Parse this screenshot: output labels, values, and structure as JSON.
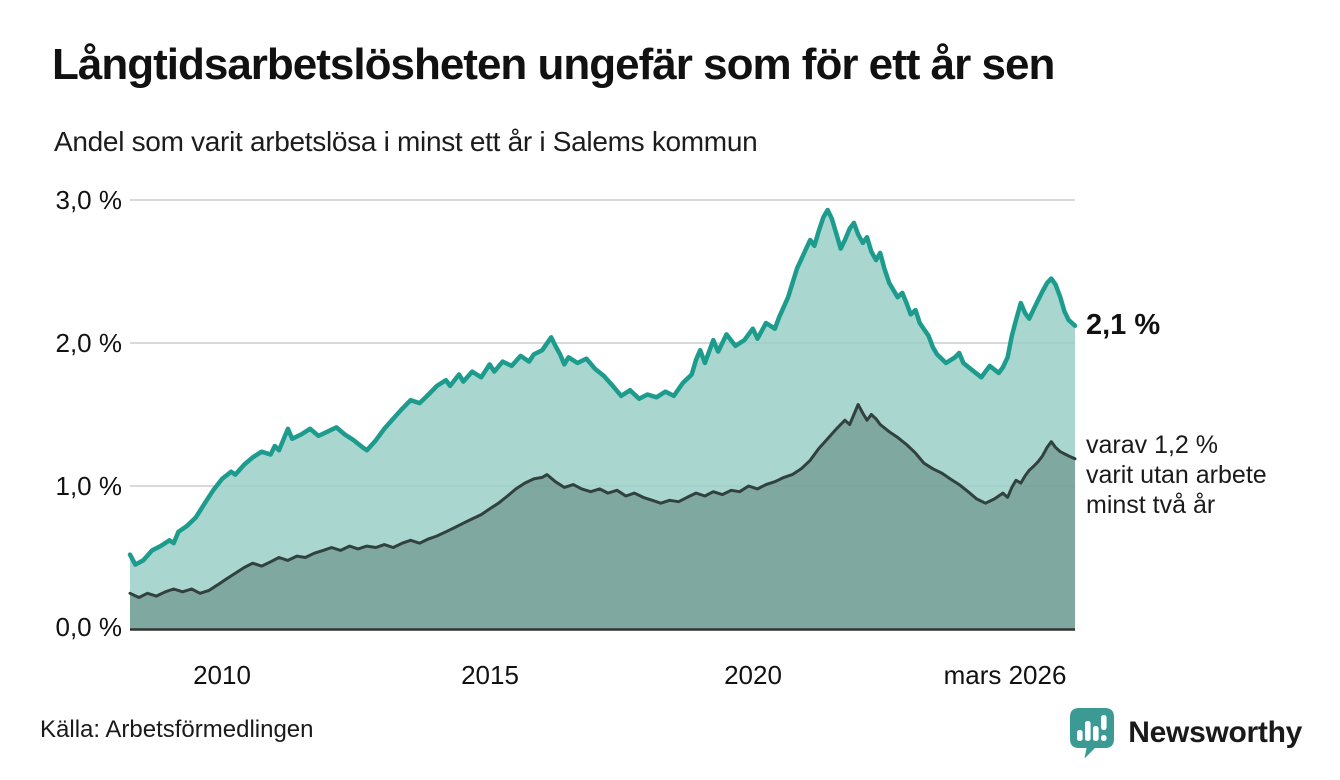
{
  "header": {
    "title": "Långtidsarbetslösheten ungefär som för ett år sen",
    "subtitle": "Andel som varit arbetslösa i minst ett år i Salems kommun"
  },
  "chart_data": {
    "type": "area",
    "title": "Långtidsarbetslösheten ungefär som för ett år sen",
    "subtitle": "Andel som varit arbetslösa i minst ett år i Salems kommun",
    "x_domain": [
      2008.25,
      2026.2
    ],
    "ylim": [
      0,
      3.0
    ],
    "grid": true,
    "y_gridline_values": [
      1.0,
      2.0,
      3.0
    ],
    "y_ticks": [
      "0,0 %",
      "1,0 %",
      "2,0 %",
      "3,0 %"
    ],
    "x_ticks": [
      "2010",
      "2015",
      "2020",
      "mars 2026"
    ],
    "colors": {
      "grid": "#d6dadd",
      "baseline": "#333333",
      "primary_line": "#1d9c8e",
      "primary_fill": "rgba(154,207,199,0.85)",
      "secondary_line": "#31423e",
      "secondary_fill": "rgba(85,122,113,0.5)",
      "brand_teal": "#3b9a93"
    },
    "series": [
      {
        "id": "unemployed-one-year",
        "name": "Arbetslösa minst ett år",
        "stroke": "#1d9c8e",
        "fill": "rgba(154,207,199,0.85)",
        "stroke_width": 4.5,
        "latest_value": 2.1,
        "points": [
          [
            2008.25,
            0.52
          ],
          [
            2008.35,
            0.45
          ],
          [
            2008.5,
            0.48
          ],
          [
            2008.67,
            0.55
          ],
          [
            2008.83,
            0.58
          ],
          [
            2009.0,
            0.62
          ],
          [
            2009.08,
            0.6
          ],
          [
            2009.17,
            0.68
          ],
          [
            2009.33,
            0.72
          ],
          [
            2009.5,
            0.78
          ],
          [
            2009.67,
            0.88
          ],
          [
            2009.83,
            0.97
          ],
          [
            2010.0,
            1.05
          ],
          [
            2010.17,
            1.1
          ],
          [
            2010.25,
            1.08
          ],
          [
            2010.42,
            1.15
          ],
          [
            2010.58,
            1.2
          ],
          [
            2010.75,
            1.24
          ],
          [
            2010.92,
            1.22
          ],
          [
            2011.0,
            1.28
          ],
          [
            2011.08,
            1.25
          ],
          [
            2011.25,
            1.4
          ],
          [
            2011.33,
            1.33
          ],
          [
            2011.5,
            1.36
          ],
          [
            2011.67,
            1.4
          ],
          [
            2011.83,
            1.35
          ],
          [
            2012.0,
            1.38
          ],
          [
            2012.17,
            1.41
          ],
          [
            2012.33,
            1.36
          ],
          [
            2012.5,
            1.32
          ],
          [
            2012.67,
            1.27
          ],
          [
            2012.75,
            1.25
          ],
          [
            2012.92,
            1.32
          ],
          [
            2013.08,
            1.4
          ],
          [
            2013.25,
            1.47
          ],
          [
            2013.42,
            1.54
          ],
          [
            2013.58,
            1.6
          ],
          [
            2013.75,
            1.58
          ],
          [
            2013.92,
            1.64
          ],
          [
            2014.08,
            1.7
          ],
          [
            2014.25,
            1.74
          ],
          [
            2014.33,
            1.7
          ],
          [
            2014.5,
            1.78
          ],
          [
            2014.58,
            1.73
          ],
          [
            2014.75,
            1.8
          ],
          [
            2014.92,
            1.76
          ],
          [
            2015.08,
            1.85
          ],
          [
            2015.17,
            1.8
          ],
          [
            2015.33,
            1.87
          ],
          [
            2015.5,
            1.84
          ],
          [
            2015.67,
            1.91
          ],
          [
            2015.83,
            1.87
          ],
          [
            2015.92,
            1.92
          ],
          [
            2016.08,
            1.95
          ],
          [
            2016.25,
            2.04
          ],
          [
            2016.33,
            1.98
          ],
          [
            2016.42,
            1.92
          ],
          [
            2016.5,
            1.85
          ],
          [
            2016.58,
            1.9
          ],
          [
            2016.75,
            1.86
          ],
          [
            2016.92,
            1.89
          ],
          [
            2017.08,
            1.82
          ],
          [
            2017.25,
            1.77
          ],
          [
            2017.42,
            1.7
          ],
          [
            2017.58,
            1.63
          ],
          [
            2017.75,
            1.67
          ],
          [
            2017.92,
            1.61
          ],
          [
            2018.08,
            1.64
          ],
          [
            2018.25,
            1.62
          ],
          [
            2018.42,
            1.66
          ],
          [
            2018.58,
            1.63
          ],
          [
            2018.75,
            1.72
          ],
          [
            2018.92,
            1.78
          ],
          [
            2019.0,
            1.88
          ],
          [
            2019.08,
            1.95
          ],
          [
            2019.17,
            1.86
          ],
          [
            2019.33,
            2.02
          ],
          [
            2019.42,
            1.94
          ],
          [
            2019.5,
            2.0
          ],
          [
            2019.58,
            2.06
          ],
          [
            2019.75,
            1.98
          ],
          [
            2019.92,
            2.02
          ],
          [
            2020.08,
            2.1
          ],
          [
            2020.17,
            2.03
          ],
          [
            2020.33,
            2.14
          ],
          [
            2020.5,
            2.1
          ],
          [
            2020.58,
            2.18
          ],
          [
            2020.75,
            2.32
          ],
          [
            2020.92,
            2.52
          ],
          [
            2021.08,
            2.65
          ],
          [
            2021.17,
            2.72
          ],
          [
            2021.25,
            2.68
          ],
          [
            2021.33,
            2.78
          ],
          [
            2021.42,
            2.88
          ],
          [
            2021.5,
            2.93
          ],
          [
            2021.58,
            2.87
          ],
          [
            2021.67,
            2.76
          ],
          [
            2021.75,
            2.66
          ],
          [
            2021.83,
            2.72
          ],
          [
            2021.92,
            2.8
          ],
          [
            2022.0,
            2.84
          ],
          [
            2022.08,
            2.76
          ],
          [
            2022.17,
            2.7
          ],
          [
            2022.25,
            2.74
          ],
          [
            2022.33,
            2.64
          ],
          [
            2022.42,
            2.58
          ],
          [
            2022.5,
            2.63
          ],
          [
            2022.58,
            2.52
          ],
          [
            2022.67,
            2.42
          ],
          [
            2022.83,
            2.32
          ],
          [
            2022.92,
            2.35
          ],
          [
            2023.0,
            2.28
          ],
          [
            2023.08,
            2.2
          ],
          [
            2023.17,
            2.23
          ],
          [
            2023.25,
            2.14
          ],
          [
            2023.42,
            2.05
          ],
          [
            2023.5,
            1.97
          ],
          [
            2023.58,
            1.92
          ],
          [
            2023.75,
            1.86
          ],
          [
            2023.92,
            1.9
          ],
          [
            2024.0,
            1.93
          ],
          [
            2024.08,
            1.86
          ],
          [
            2024.25,
            1.81
          ],
          [
            2024.42,
            1.76
          ],
          [
            2024.5,
            1.8
          ],
          [
            2024.58,
            1.84
          ],
          [
            2024.75,
            1.79
          ],
          [
            2024.83,
            1.83
          ],
          [
            2024.92,
            1.9
          ],
          [
            2025.0,
            2.05
          ],
          [
            2025.08,
            2.16
          ],
          [
            2025.17,
            2.28
          ],
          [
            2025.25,
            2.21
          ],
          [
            2025.33,
            2.17
          ],
          [
            2025.42,
            2.24
          ],
          [
            2025.5,
            2.3
          ],
          [
            2025.58,
            2.36
          ],
          [
            2025.67,
            2.42
          ],
          [
            2025.75,
            2.45
          ],
          [
            2025.83,
            2.41
          ],
          [
            2025.92,
            2.32
          ],
          [
            2026.0,
            2.22
          ],
          [
            2026.08,
            2.16
          ],
          [
            2026.2,
            2.12
          ]
        ]
      },
      {
        "id": "unemployed-two-years",
        "name": "Varav utan arbete minst två år",
        "stroke": "#31423e",
        "fill": "rgba(85,122,113,0.5)",
        "stroke_width": 3,
        "latest_value": 1.2,
        "points": [
          [
            2008.25,
            0.25
          ],
          [
            2008.42,
            0.22
          ],
          [
            2008.58,
            0.25
          ],
          [
            2008.75,
            0.23
          ],
          [
            2008.92,
            0.26
          ],
          [
            2009.08,
            0.28
          ],
          [
            2009.25,
            0.26
          ],
          [
            2009.42,
            0.28
          ],
          [
            2009.58,
            0.25
          ],
          [
            2009.75,
            0.27
          ],
          [
            2009.92,
            0.31
          ],
          [
            2010.08,
            0.35
          ],
          [
            2010.25,
            0.39
          ],
          [
            2010.42,
            0.43
          ],
          [
            2010.58,
            0.46
          ],
          [
            2010.75,
            0.44
          ],
          [
            2010.92,
            0.47
          ],
          [
            2011.08,
            0.5
          ],
          [
            2011.25,
            0.48
          ],
          [
            2011.42,
            0.51
          ],
          [
            2011.58,
            0.5
          ],
          [
            2011.75,
            0.53
          ],
          [
            2011.92,
            0.55
          ],
          [
            2012.08,
            0.57
          ],
          [
            2012.25,
            0.55
          ],
          [
            2012.42,
            0.58
          ],
          [
            2012.58,
            0.56
          ],
          [
            2012.75,
            0.58
          ],
          [
            2012.92,
            0.57
          ],
          [
            2013.08,
            0.59
          ],
          [
            2013.25,
            0.57
          ],
          [
            2013.42,
            0.6
          ],
          [
            2013.58,
            0.62
          ],
          [
            2013.75,
            0.6
          ],
          [
            2013.92,
            0.63
          ],
          [
            2014.08,
            0.65
          ],
          [
            2014.25,
            0.68
          ],
          [
            2014.42,
            0.71
          ],
          [
            2014.58,
            0.74
          ],
          [
            2014.75,
            0.77
          ],
          [
            2014.92,
            0.8
          ],
          [
            2015.08,
            0.84
          ],
          [
            2015.25,
            0.88
          ],
          [
            2015.42,
            0.93
          ],
          [
            2015.58,
            0.98
          ],
          [
            2015.75,
            1.02
          ],
          [
            2015.92,
            1.05
          ],
          [
            2016.08,
            1.06
          ],
          [
            2016.17,
            1.08
          ],
          [
            2016.33,
            1.03
          ],
          [
            2016.5,
            0.99
          ],
          [
            2016.67,
            1.01
          ],
          [
            2016.83,
            0.98
          ],
          [
            2017.0,
            0.96
          ],
          [
            2017.17,
            0.98
          ],
          [
            2017.33,
            0.95
          ],
          [
            2017.5,
            0.97
          ],
          [
            2017.67,
            0.93
          ],
          [
            2017.83,
            0.95
          ],
          [
            2018.0,
            0.92
          ],
          [
            2018.17,
            0.9
          ],
          [
            2018.33,
            0.88
          ],
          [
            2018.5,
            0.9
          ],
          [
            2018.67,
            0.89
          ],
          [
            2018.83,
            0.92
          ],
          [
            2019.0,
            0.95
          ],
          [
            2019.17,
            0.93
          ],
          [
            2019.33,
            0.96
          ],
          [
            2019.5,
            0.94
          ],
          [
            2019.67,
            0.97
          ],
          [
            2019.83,
            0.96
          ],
          [
            2020.0,
            1.0
          ],
          [
            2020.17,
            0.98
          ],
          [
            2020.33,
            1.01
          ],
          [
            2020.5,
            1.03
          ],
          [
            2020.67,
            1.06
          ],
          [
            2020.83,
            1.08
          ],
          [
            2021.0,
            1.12
          ],
          [
            2021.17,
            1.18
          ],
          [
            2021.33,
            1.26
          ],
          [
            2021.5,
            1.33
          ],
          [
            2021.67,
            1.4
          ],
          [
            2021.83,
            1.46
          ],
          [
            2021.92,
            1.43
          ],
          [
            2022.0,
            1.5
          ],
          [
            2022.08,
            1.57
          ],
          [
            2022.17,
            1.51
          ],
          [
            2022.25,
            1.46
          ],
          [
            2022.33,
            1.5
          ],
          [
            2022.42,
            1.47
          ],
          [
            2022.5,
            1.43
          ],
          [
            2022.67,
            1.38
          ],
          [
            2022.83,
            1.34
          ],
          [
            2023.0,
            1.29
          ],
          [
            2023.17,
            1.23
          ],
          [
            2023.33,
            1.16
          ],
          [
            2023.5,
            1.12
          ],
          [
            2023.67,
            1.09
          ],
          [
            2023.83,
            1.05
          ],
          [
            2024.0,
            1.01
          ],
          [
            2024.17,
            0.96
          ],
          [
            2024.33,
            0.91
          ],
          [
            2024.5,
            0.88
          ],
          [
            2024.67,
            0.91
          ],
          [
            2024.83,
            0.95
          ],
          [
            2024.92,
            0.92
          ],
          [
            2025.0,
            0.99
          ],
          [
            2025.08,
            1.04
          ],
          [
            2025.17,
            1.02
          ],
          [
            2025.25,
            1.07
          ],
          [
            2025.33,
            1.11
          ],
          [
            2025.42,
            1.14
          ],
          [
            2025.5,
            1.17
          ],
          [
            2025.58,
            1.21
          ],
          [
            2025.67,
            1.27
          ],
          [
            2025.75,
            1.31
          ],
          [
            2025.83,
            1.27
          ],
          [
            2025.92,
            1.24
          ],
          [
            2026.08,
            1.21
          ],
          [
            2026.2,
            1.19
          ]
        ]
      }
    ],
    "annotations": {
      "latest_value_label": "2,1 %",
      "secondary_lines": [
        "varav 1,2 %",
        "varit utan arbete",
        "minst två år"
      ]
    },
    "legend_position": "none"
  },
  "footer": {
    "source": "Källa: Arbetsförmedlingen",
    "brand": "Newsworthy"
  }
}
